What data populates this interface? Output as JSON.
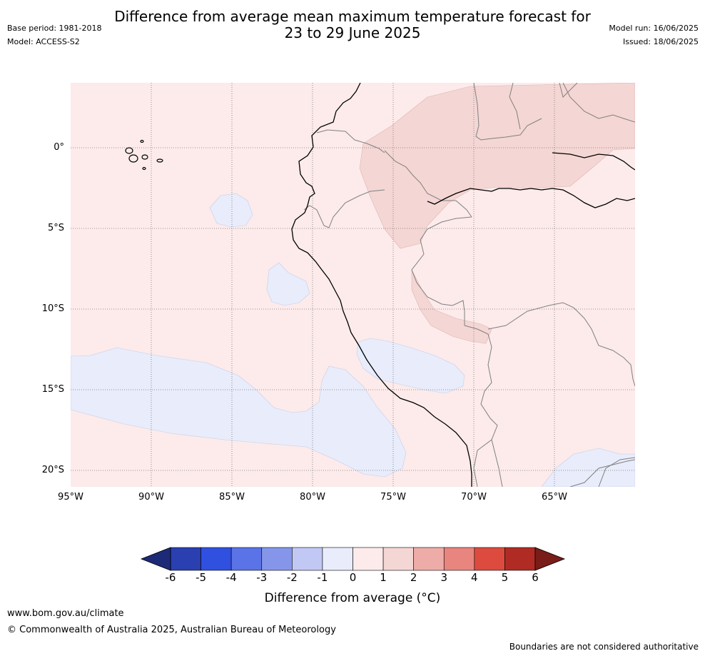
{
  "title": {
    "line1": "Difference from average mean maximum temperature forecast for",
    "line2": "23 to 29 June 2025"
  },
  "meta": {
    "base_period": "Base period: 1981-2018",
    "model": "Model: ACCESS-S2",
    "model_run": "Model run: 16/06/2025",
    "issued": "Issued: 18/06/2025"
  },
  "map": {
    "lat_labels": [
      "0°",
      "5°S",
      "10°S",
      "15°S",
      "20°S"
    ],
    "lon_labels": [
      "95°W",
      "90°W",
      "85°W",
      "80°W",
      "75°W",
      "70°W",
      "65°W"
    ],
    "colors": {
      "background_anomaly": "#fcebea",
      "warm_anomaly": "#f4d6d4",
      "cool_anomaly": "#e8ecfb",
      "coastline": "#000000",
      "borders": "#808080",
      "gridlines": "#777777"
    }
  },
  "colorbar": {
    "ticks": [
      "-6",
      "-5",
      "-4",
      "-3",
      "-2",
      "-1",
      "0",
      "1",
      "2",
      "3",
      "4",
      "5",
      "6"
    ],
    "colors": [
      "#2a3fb0",
      "#3050e0",
      "#5a73e6",
      "#8596ea",
      "#c2c8f4",
      "#e8ecfb",
      "#fcebea",
      "#f4d6d4",
      "#eeaca8",
      "#e8857f",
      "#dc4b3e",
      "#b02b24"
    ],
    "under_color": "#1d2a78",
    "over_color": "#7a1c17",
    "label": "Difference from average (°C)",
    "label_unit_line": "Difference from average ($^\\circ$C)"
  },
  "footer": {
    "website": "www.bom.gov.au/climate",
    "copyright": "© Commonwealth of Australia 2025, Australian Bureau of Meteorology",
    "disclaimer": "Boundaries are not considered authoritative"
  }
}
